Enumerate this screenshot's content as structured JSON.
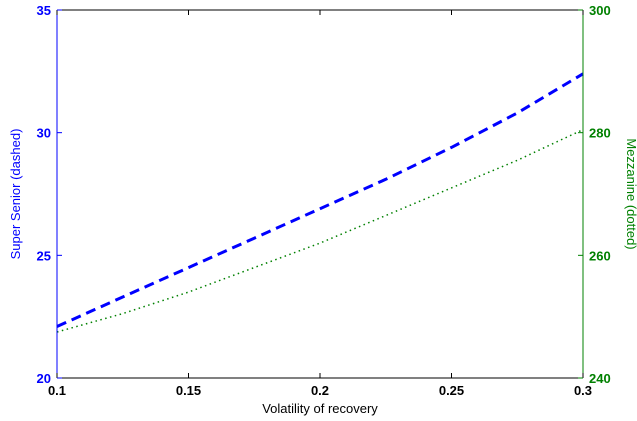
{
  "chart_data": {
    "type": "line",
    "xlabel": "Volatility of recovery",
    "ylabel_left": "Super Senior (dashed)",
    "ylabel_right": "Mezzanine (dotted)",
    "xlim": [
      0.1,
      0.3
    ],
    "ylim_left": [
      20,
      35
    ],
    "ylim_right": [
      240,
      300
    ],
    "xticks": [
      "0.1",
      "0.15",
      "0.2",
      "0.25",
      "0.3"
    ],
    "yticks_left": [
      "20",
      "25",
      "30",
      "35"
    ],
    "yticks_right": [
      "240",
      "260",
      "280",
      "300"
    ],
    "grid": false,
    "colors": {
      "left_axis": "#0000ff",
      "right_axis": "#008000",
      "x_axis": "#000000"
    },
    "x": [
      0.1,
      0.125,
      0.15,
      0.175,
      0.2,
      0.225,
      0.25,
      0.275,
      0.3
    ],
    "series": [
      {
        "axis": "left",
        "style": "dashed",
        "color": "#0000ff",
        "values": [
          22.1,
          23.3,
          24.5,
          25.7,
          26.9,
          28.1,
          29.4,
          30.8,
          32.4
        ]
      },
      {
        "axis": "right",
        "style": "dotted",
        "color": "#008000",
        "values": [
          247.5,
          250.5,
          254.0,
          258.0,
          262.0,
          266.5,
          271.0,
          275.5,
          280.5
        ]
      }
    ]
  }
}
